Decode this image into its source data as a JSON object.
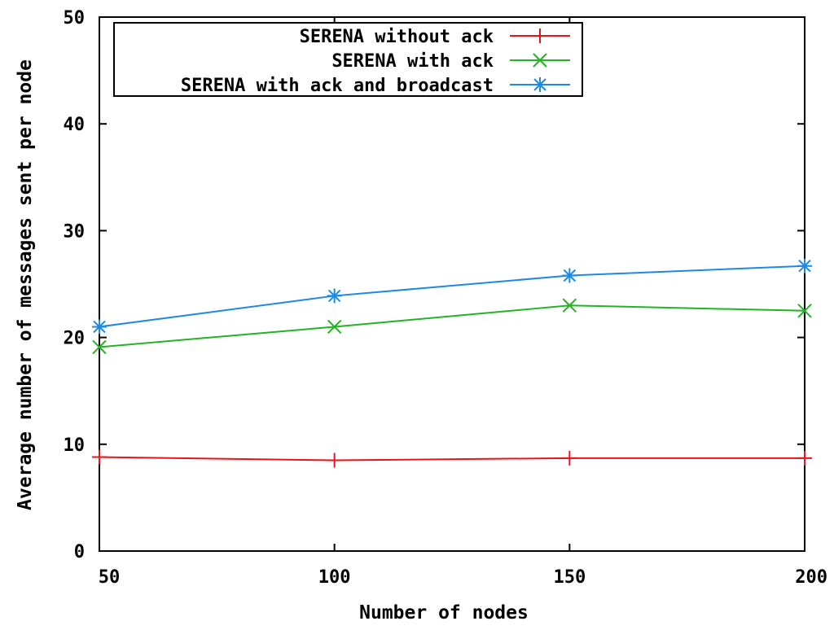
{
  "chart_data": {
    "type": "line",
    "title": "",
    "xlabel": "Number of nodes",
    "ylabel": "Average number of messages sent per node",
    "x": [
      50,
      100,
      150,
      200
    ],
    "xlim": [
      50,
      200
    ],
    "ylim": [
      0,
      50
    ],
    "xticks": [
      "50",
      "100",
      "150",
      "200"
    ],
    "yticks": [
      "0",
      "10",
      "20",
      "30",
      "40",
      "50"
    ],
    "grid": false,
    "legend_position": "top-right",
    "series": [
      {
        "name": "SERENA without ack",
        "color": "#e8141c",
        "marker": "plus",
        "values": [
          8.8,
          8.5,
          8.7,
          8.7
        ]
      },
      {
        "name": "SERENA with ack",
        "color": "#22b422",
        "marker": "cross",
        "values": [
          19.1,
          21.0,
          23.0,
          22.5
        ]
      },
      {
        "name": "SERENA with ack and broadcast",
        "color": "#1e88e5",
        "marker": "star",
        "values": [
          21.0,
          23.9,
          25.8,
          26.7
        ]
      }
    ]
  }
}
